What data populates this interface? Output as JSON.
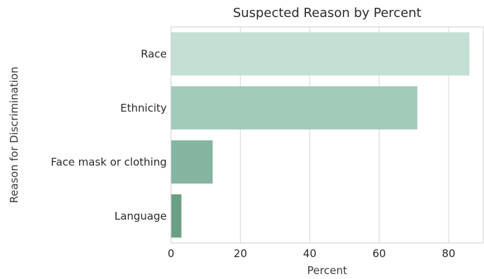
{
  "chart_data": {
    "type": "bar",
    "orientation": "horizontal",
    "title": "Suspected Reason by Percent",
    "xlabel": "Percent",
    "ylabel": "Reason for Discrimination",
    "categories": [
      "Race",
      "Ethnicity",
      "Face mask or clothing",
      "Language"
    ],
    "values": [
      86,
      71,
      12,
      3
    ],
    "xlim": [
      0,
      90
    ],
    "xticks": [
      0,
      20,
      40,
      60,
      80
    ],
    "grid": "vertical",
    "colors": [
      "#c4e0d5",
      "#a2cbba",
      "#84b59e",
      "#6a9f84"
    ]
  }
}
